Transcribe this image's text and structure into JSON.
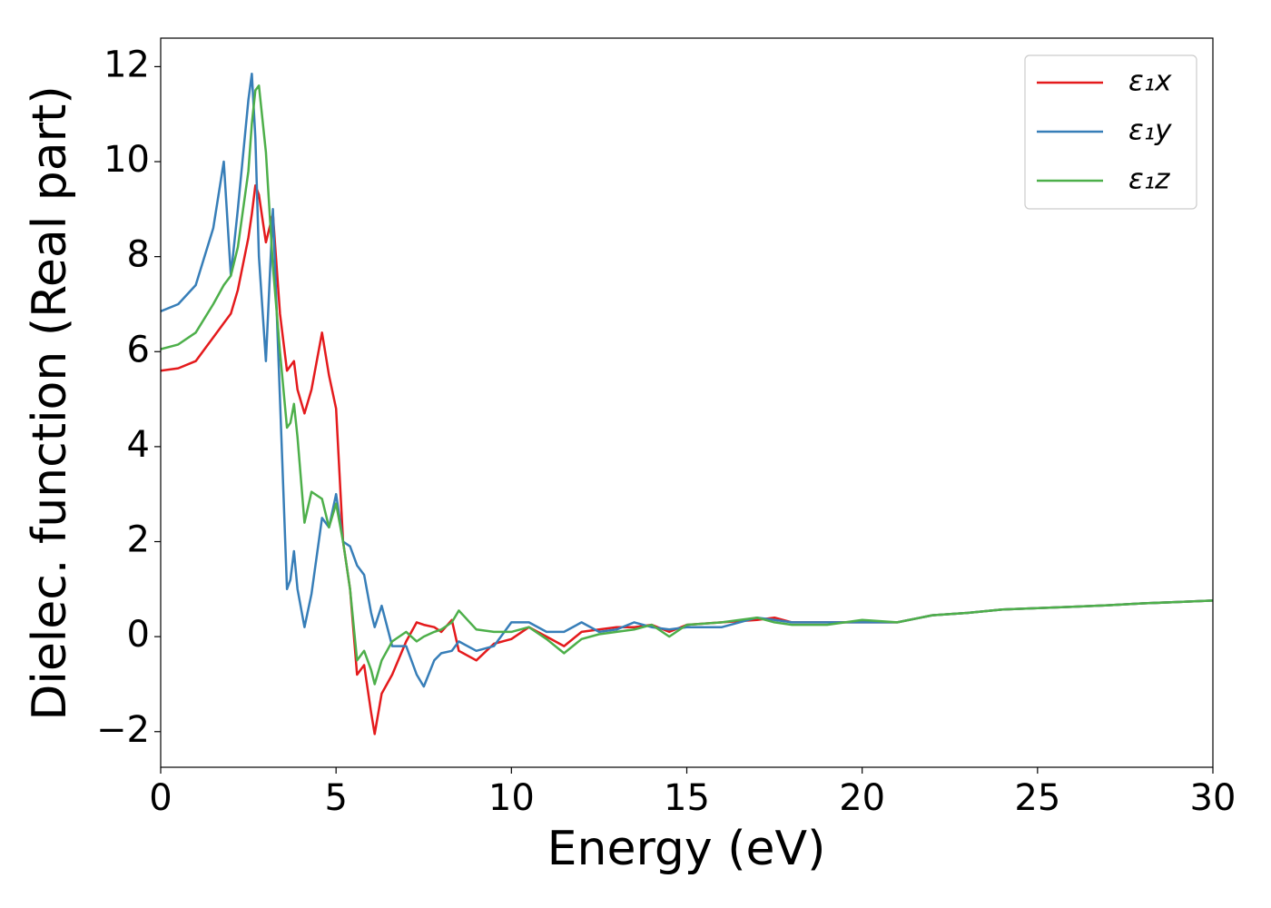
{
  "chart_data": {
    "type": "line",
    "xlabel": "Energy (eV)",
    "ylabel": "Dielec. function (Real part)",
    "x": [
      0,
      0.5,
      1,
      1.5,
      1.8,
      2,
      2.2,
      2.5,
      2.6,
      2.7,
      2.8,
      3.0,
      3.2,
      3.4,
      3.6,
      3.7,
      3.8,
      3.9,
      4.1,
      4.3,
      4.6,
      4.8,
      5.0,
      5.2,
      5.4,
      5.6,
      5.8,
      6.0,
      6.1,
      6.3,
      6.6,
      7.0,
      7.3,
      7.5,
      7.8,
      8.0,
      8.3,
      8.5,
      9.0,
      9.5,
      10,
      10.5,
      11,
      11.5,
      12,
      12.5,
      13,
      13.5,
      14,
      14.5,
      15,
      16,
      17,
      17.5,
      18,
      19,
      20,
      21,
      22,
      23,
      24,
      25,
      26,
      27,
      28,
      29,
      30
    ],
    "series": [
      {
        "name": "ε₁x",
        "color": "#e41a1c",
        "values": [
          5.6,
          5.65,
          5.8,
          6.3,
          6.6,
          6.8,
          7.3,
          8.4,
          8.9,
          9.5,
          9.3,
          8.3,
          8.9,
          6.8,
          5.6,
          5.7,
          5.8,
          5.2,
          4.7,
          5.2,
          6.4,
          5.5,
          4.8,
          2.0,
          1.0,
          -0.8,
          -0.6,
          -1.6,
          -2.05,
          -1.2,
          -0.8,
          -0.1,
          0.3,
          0.25,
          0.2,
          0.1,
          0.35,
          -0.3,
          -0.5,
          -0.15,
          -0.05,
          0.2,
          0.0,
          -0.2,
          0.1,
          0.15,
          0.2,
          0.2,
          0.25,
          0.1,
          0.25,
          0.3,
          0.35,
          0.4,
          0.3,
          0.3,
          0.3,
          0.3,
          0.45,
          0.5,
          0.57,
          0.6,
          0.63,
          0.66,
          0.7,
          0.73,
          0.76
        ]
      },
      {
        "name": "ε₁y",
        "color": "#377eb8",
        "values": [
          6.85,
          7.0,
          7.4,
          8.6,
          10.0,
          7.6,
          9.0,
          11.3,
          11.85,
          10.5,
          8.0,
          5.8,
          9.0,
          5.0,
          1.0,
          1.2,
          1.8,
          1.0,
          0.2,
          0.9,
          2.5,
          2.3,
          3.0,
          2.0,
          1.9,
          1.5,
          1.3,
          0.5,
          0.2,
          0.65,
          -0.2,
          -0.2,
          -0.8,
          -1.05,
          -0.5,
          -0.35,
          -0.3,
          -0.1,
          -0.3,
          -0.2,
          0.3,
          0.3,
          0.1,
          0.1,
          0.3,
          0.1,
          0.15,
          0.3,
          0.2,
          0.15,
          0.2,
          0.2,
          0.4,
          0.35,
          0.3,
          0.3,
          0.3,
          0.3,
          0.45,
          0.5,
          0.57,
          0.6,
          0.63,
          0.66,
          0.7,
          0.73,
          0.76
        ]
      },
      {
        "name": "ε₁z",
        "color": "#4daf4a",
        "values": [
          6.05,
          6.15,
          6.4,
          7.0,
          7.4,
          7.6,
          8.2,
          9.8,
          10.8,
          11.5,
          11.6,
          10.2,
          7.8,
          6.0,
          4.4,
          4.5,
          4.9,
          4.2,
          2.4,
          3.05,
          2.9,
          2.3,
          2.8,
          2.0,
          1.0,
          -0.5,
          -0.3,
          -0.7,
          -1.0,
          -0.5,
          -0.1,
          0.1,
          -0.1,
          0.0,
          0.1,
          0.15,
          0.3,
          0.55,
          0.15,
          0.1,
          0.1,
          0.2,
          -0.05,
          -0.35,
          -0.05,
          0.05,
          0.1,
          0.15,
          0.25,
          0.0,
          0.25,
          0.3,
          0.4,
          0.3,
          0.25,
          0.25,
          0.35,
          0.3,
          0.45,
          0.5,
          0.57,
          0.6,
          0.63,
          0.66,
          0.7,
          0.73,
          0.76
        ]
      }
    ],
    "xlim": [
      0,
      30
    ],
    "xticks": [
      0,
      5,
      10,
      15,
      20,
      25,
      30
    ],
    "ylim": [
      -2.75,
      12.6
    ],
    "yticks": [
      {
        "value": -2,
        "label": "−2"
      },
      0,
      2,
      4,
      6,
      8,
      10,
      12
    ],
    "legend": "upper right"
  }
}
